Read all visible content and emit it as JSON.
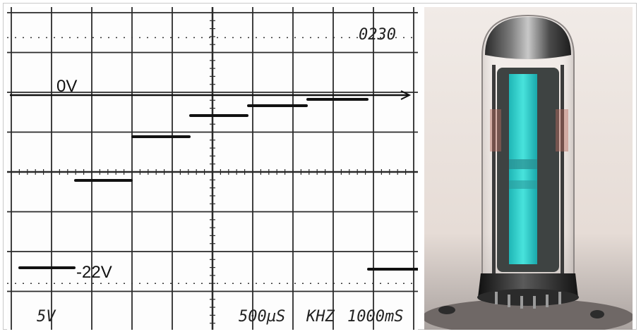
{
  "oscilloscope": {
    "zero_label": "0V",
    "neg_label": "-22V",
    "counter": "0230",
    "volts_div": "5V",
    "time_div": "500µS",
    "freq_unit": "KHZ",
    "time2": "1000mS"
  },
  "colors": {
    "trace": "#111111",
    "grid": "#222222",
    "tube_glow": "#37d6d2",
    "photo_bg": "#e9dfda"
  }
}
